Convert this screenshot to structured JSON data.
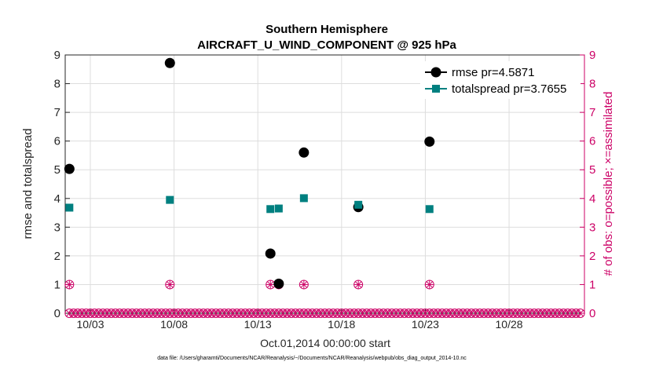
{
  "chart_data": {
    "type": "scatter",
    "title": [
      "Southern Hemisphere",
      "AIRCRAFT_U_WIND_COMPONENT @ 925 hPa"
    ],
    "xlabel": "Oct.01,2014 00:00:00 start",
    "ylabel": "rmse and totalspread",
    "ylabel_right": "# of obs: o=possible; ×=assimilated",
    "xlim": [
      1.5,
      32.5
    ],
    "ylim": [
      0,
      9
    ],
    "ylim_right": [
      0,
      9
    ],
    "x_ticks": [
      3,
      8,
      13,
      18,
      23,
      28
    ],
    "x_tick_labels": [
      "10/03",
      "10/08",
      "10/13",
      "10/18",
      "10/23",
      "10/28"
    ],
    "y_ticks": [
      0,
      1,
      2,
      3,
      4,
      5,
      6,
      7,
      8,
      9
    ],
    "grid": true,
    "legend_position": "top-right",
    "series": [
      {
        "name": "rmse pr=4.5871",
        "color": "#000000",
        "marker": "circle",
        "x": [
          1.75,
          7.75,
          13.75,
          14.25,
          15.75,
          19.0,
          23.25
        ],
        "y": [
          5.03,
          8.72,
          2.08,
          1.03,
          5.6,
          3.7,
          5.98
        ]
      },
      {
        "name": "totalspread pr=3.7655",
        "color": "#008080",
        "marker": "square",
        "x": [
          1.75,
          7.75,
          13.75,
          14.25,
          15.75,
          19.0,
          23.25
        ],
        "y": [
          3.68,
          3.95,
          3.63,
          3.65,
          4.01,
          3.78,
          3.63
        ]
      }
    ],
    "obs_counts": {
      "color": "#cc0066",
      "x_start": 1.75,
      "x_step": 0.25,
      "x_end": 32.25,
      "nonzero_x": [
        1.75,
        7.75,
        13.75,
        14.25,
        15.75,
        19.0,
        23.25
      ],
      "nonzero_value": 1,
      "zero_value": 0
    }
  },
  "footnote": "data file: /Users/gharamti/Documents/NCAR/Reanalysis/~/Documents/NCAR/Reanalysis/webpub/obs_diag_output_2014-10.nc"
}
